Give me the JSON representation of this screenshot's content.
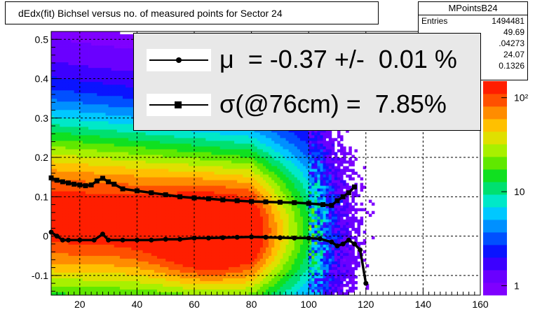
{
  "title": "dEdx(fit) Bichsel versus no. of measured points for Sector 24",
  "stats": {
    "name": "MPointsB24",
    "rows": [
      {
        "label": "Entries",
        "value": "1494481"
      },
      {
        "label": "",
        "value": "49.69"
      },
      {
        "label": "",
        "value": ".04273"
      },
      {
        "label": "",
        "value": "24.07"
      },
      {
        "label": "",
        "value": "0.1326"
      }
    ]
  },
  "legend": {
    "mean_text": "μ  = -0.37 +/-  0.01 %",
    "sigma_text": "σ(@76cm) =  7.85%"
  },
  "colorbar": {
    "labels": [
      "1",
      "10",
      "10²"
    ],
    "colors": [
      "#7f00ff",
      "#6a00ff",
      "#3c00ff",
      "#0a14ff",
      "#0050ff",
      "#0090ff",
      "#00c8ff",
      "#00e8c8",
      "#00e070",
      "#10e020",
      "#60e800",
      "#a8f000",
      "#e0e000",
      "#ffc000",
      "#ff8c00",
      "#ff5000",
      "#ff1e00"
    ]
  },
  "chart_data": {
    "type": "heatmap",
    "title": "dEdx(fit) Bichsel versus no. of measured points for Sector 24",
    "xlabel": "",
    "ylabel": "",
    "xlim": [
      10,
      160
    ],
    "ylim": [
      -0.15,
      0.52
    ],
    "x_ticks": [
      "20",
      "40",
      "60",
      "80",
      "100",
      "120",
      "140",
      "160"
    ],
    "y_ticks": [
      "-0.1",
      "0",
      "0.1",
      "0.2",
      "0.3",
      "0.4",
      "0.5"
    ],
    "z_scale": "log",
    "grid": true,
    "series": [
      {
        "name": "μ",
        "marker": "dot",
        "x": [
          10,
          12,
          14,
          16,
          20,
          25,
          28,
          30,
          35,
          40,
          45,
          50,
          55,
          60,
          65,
          70,
          75,
          80,
          85,
          90,
          95,
          100,
          104,
          108,
          110,
          112,
          114,
          116,
          118,
          120
        ],
        "y": [
          0.01,
          0.0,
          -0.01,
          -0.01,
          -0.01,
          -0.01,
          0.005,
          -0.01,
          -0.01,
          -0.01,
          -0.01,
          -0.008,
          -0.008,
          -0.005,
          -0.005,
          -0.004,
          -0.003,
          -0.002,
          -0.003,
          -0.004,
          -0.005,
          -0.005,
          -0.007,
          -0.015,
          -0.025,
          -0.02,
          -0.01,
          -0.02,
          -0.035,
          -0.12
        ]
      },
      {
        "name": "σ(@76cm)",
        "marker": "square",
        "x": [
          10,
          12,
          14,
          16,
          18,
          20,
          22,
          24,
          26,
          28,
          30,
          32,
          35,
          40,
          45,
          50,
          55,
          60,
          65,
          70,
          75,
          80,
          85,
          90,
          95,
          100,
          105,
          108,
          110,
          112,
          114,
          116
        ],
        "y": [
          0.148,
          0.142,
          0.138,
          0.135,
          0.132,
          0.13,
          0.128,
          0.13,
          0.14,
          0.147,
          0.138,
          0.132,
          0.12,
          0.115,
          0.11,
          0.105,
          0.1,
          0.097,
          0.095,
          0.092,
          0.09,
          0.088,
          0.087,
          0.086,
          0.085,
          0.083,
          0.08,
          0.078,
          0.09,
          0.1,
          0.11,
          0.125
        ]
      }
    ]
  }
}
